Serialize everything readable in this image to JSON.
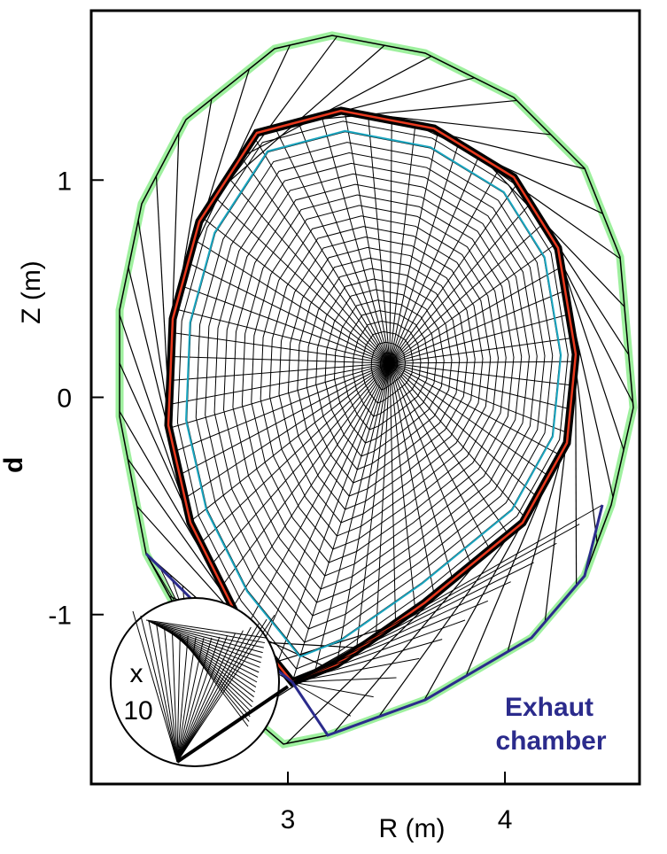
{
  "chart_data": {
    "type": "mesh",
    "xlabel": "R (m)",
    "ylabel": "Z (m)",
    "xlim": [
      2.094,
      4.62
    ],
    "ylim": [
      -1.78,
      1.78
    ],
    "xticks": [
      3,
      4
    ],
    "yticks": [
      -1,
      0,
      1
    ],
    "annotations": [
      "Exhaut",
      "chamber",
      "x",
      "10",
      "d"
    ],
    "separatrix_color": "#e8391e",
    "core_color": "#1aa6c0",
    "wall_color": "#9ef09e",
    "divertor_color": "#2b2b8c"
  }
}
